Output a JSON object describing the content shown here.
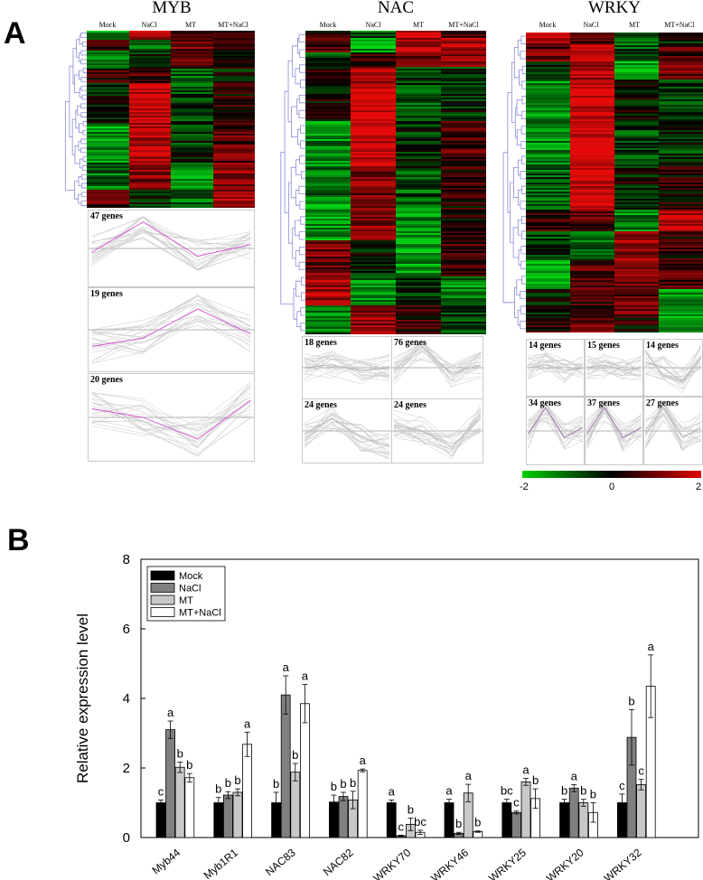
{
  "panel_a": {
    "letter": "A",
    "families": [
      {
        "title": "MYB",
        "columns": [
          "Mock",
          "NaCl",
          "MT",
          "MT+NaCl"
        ],
        "clusters": [
          "47 genes",
          "19 genes",
          "20 genes"
        ]
      },
      {
        "title": "NAC",
        "columns": [
          "Mock",
          "NaCl",
          "MT",
          "MT+NaCl"
        ],
        "clusters": [
          "18 genes",
          "76 genes",
          "24 genes",
          "24 genes"
        ]
      },
      {
        "title": "WRKY",
        "columns": [
          "Mock",
          "NaCl",
          "MT",
          "MT+NaCl"
        ],
        "clusters": [
          "14 genes",
          "15 genes",
          "14 genes",
          "34 genes",
          "37 genes",
          "27 genes"
        ]
      }
    ],
    "color_scale": {
      "min": "-2",
      "mid": "0",
      "max": "2",
      "low_color": "#00d000",
      "mid_color": "#000000",
      "high_color": "#e00000"
    }
  },
  "panel_b": {
    "letter": "B"
  },
  "chart_data": {
    "type": "bar",
    "ylabel": "Relative expression level",
    "xlabel": "",
    "ylim": [
      0,
      8
    ],
    "yticks": [
      "0",
      "2",
      "4",
      "6",
      "8"
    ],
    "categories": [
      "Myb44",
      "Myb1R1",
      "NAC83",
      "NAC82",
      "WRKY70",
      "WRKY46",
      "WRKY25",
      "WRKY20",
      "WRKY32"
    ],
    "series": [
      {
        "name": "Mock",
        "color": "#000000",
        "values": [
          1.0,
          1.0,
          1.0,
          1.02,
          1.0,
          1.0,
          1.0,
          1.0,
          1.0
        ],
        "errors": [
          0.08,
          0.15,
          0.3,
          0.2,
          0.08,
          0.1,
          0.1,
          0.1,
          0.25
        ],
        "letters": [
          "c",
          "b",
          "b",
          "b",
          "a",
          "a",
          "bc",
          "b",
          "c"
        ]
      },
      {
        "name": "NaCl",
        "color": "#808080",
        "values": [
          3.1,
          1.22,
          4.1,
          1.18,
          0.05,
          0.12,
          0.72,
          1.42,
          2.88
        ],
        "errors": [
          0.25,
          0.1,
          0.55,
          0.12,
          0.02,
          0.03,
          0.04,
          0.1,
          0.8
        ],
        "letters": [
          "a",
          "b",
          "a",
          "b",
          "c",
          "b",
          "c",
          "a",
          "b"
        ]
      },
      {
        "name": "MT",
        "color": "#c8c8c8",
        "values": [
          2.02,
          1.3,
          1.88,
          1.08,
          0.38,
          1.28,
          1.6,
          1.0,
          1.52
        ],
        "errors": [
          0.15,
          0.1,
          0.25,
          0.25,
          0.18,
          0.25,
          0.1,
          0.1,
          0.15
        ],
        "letters": [
          "b",
          "b",
          "b",
          "b",
          "b",
          "a",
          "a",
          "b",
          "c"
        ]
      },
      {
        "name": "MT+NaCl",
        "color": "#ffffff",
        "values": [
          1.72,
          2.68,
          3.85,
          1.93,
          0.15,
          0.17,
          1.12,
          0.72,
          4.35
        ],
        "errors": [
          0.12,
          0.35,
          0.55,
          0.04,
          0.06,
          0.02,
          0.28,
          0.28,
          0.9
        ],
        "letters": [
          "b",
          "a",
          "a",
          "a",
          "bc",
          "b",
          "b",
          "b",
          "a"
        ]
      }
    ],
    "legend": [
      "Mock",
      "NaCl",
      "MT",
      "MT+NaCl"
    ],
    "legend_position": "top-left"
  }
}
